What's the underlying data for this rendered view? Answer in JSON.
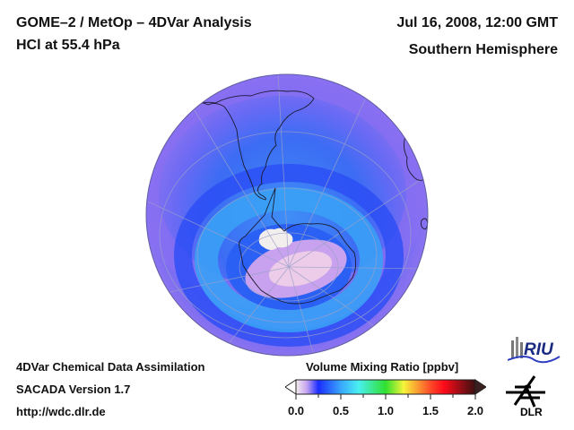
{
  "header": {
    "title_line1": "GOME–2 / MetOp – 4DVar Analysis",
    "title_line2": "HCl at 55.4 hPa",
    "date": "Jul 16, 2008, 12:00 GMT",
    "region": "Southern Hemisphere"
  },
  "footer": {
    "line1": "4DVar Chemical Data Assimilation",
    "line2": "SACADA Version 1.7",
    "line3": "http://wdc.dlr.de"
  },
  "logos": {
    "riu": "RIU",
    "dlr": "DLR"
  },
  "chart_data": {
    "type": "heatmap",
    "title": "HCl at 55.4 hPa",
    "projection": "orthographic, Southern Hemisphere",
    "quantity": "Volume Mixing Ratio",
    "units": "ppbv",
    "colorbar": {
      "label": "Volume Mixing Ratio [ppbv]",
      "range": [
        0.0,
        2.0
      ],
      "ticks": [
        "0.0",
        "0.5",
        "1.0",
        "1.5",
        "2.0"
      ],
      "extend": "both",
      "stops": [
        {
          "value": 0.0,
          "color": "#f4eeee"
        },
        {
          "value": 0.12,
          "color": "#c7a4f0"
        },
        {
          "value": 0.25,
          "color": "#1a2dff"
        },
        {
          "value": 0.5,
          "color": "#39a6ff"
        },
        {
          "value": 0.7,
          "color": "#4af0f0"
        },
        {
          "value": 1.0,
          "color": "#2fe02f"
        },
        {
          "value": 1.2,
          "color": "#f5f53a"
        },
        {
          "value": 1.5,
          "color": "#ff4a2a"
        },
        {
          "value": 1.65,
          "color": "#ff0a1a"
        },
        {
          "value": 2.0,
          "color": "#3a1010"
        }
      ],
      "under_color": "#ffffff",
      "over_color": "#3a2020"
    },
    "field_description": [
      {
        "region": "Antarctic vortex core",
        "value_ppbv": 0.05
      },
      {
        "region": "vortex edge collar",
        "value_ppbv": 0.45
      },
      {
        "region": "inner ring",
        "value_ppbv": 0.3
      },
      {
        "region": "mid-latitudes",
        "value_ppbv": 0.2
      },
      {
        "region": "subtropics",
        "value_ppbv": 0.12
      }
    ],
    "missing_data_region": "Antarctic Peninsula / Weddell Sea sector (white)"
  }
}
